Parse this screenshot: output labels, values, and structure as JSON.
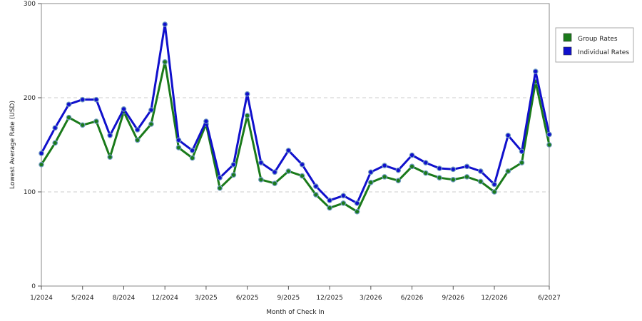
{
  "chart_data": {
    "type": "line",
    "xlabel": "Month of Check In",
    "ylabel": "Lowest Average Rate (USD)",
    "ylim": [
      0,
      300
    ],
    "yticks": [
      0,
      100,
      200,
      300
    ],
    "grid": "horizontal dashed",
    "legend_position": "top-right",
    "x_tick_labels": [
      {
        "index": 0,
        "label": "1/2024"
      },
      {
        "index": 3,
        "label": "5/2024"
      },
      {
        "index": 6,
        "label": "8/2024"
      },
      {
        "index": 9,
        "label": "12/2024"
      },
      {
        "index": 12,
        "label": "3/2025"
      },
      {
        "index": 15,
        "label": "6/2025"
      },
      {
        "index": 18,
        "label": "9/2025"
      },
      {
        "index": 21,
        "label": "12/2025"
      },
      {
        "index": 24,
        "label": "3/2026"
      },
      {
        "index": 27,
        "label": "6/2026"
      },
      {
        "index": 30,
        "label": "9/2026"
      },
      {
        "index": 33,
        "label": "12/2026"
      },
      {
        "index": 37,
        "label": "6/2027"
      }
    ],
    "point_count": 38,
    "series": [
      {
        "name": "Group Rates",
        "color": "#1a7a1a",
        "values": [
          129,
          152,
          179,
          171,
          175,
          137,
          185,
          155,
          172,
          238,
          147,
          136,
          172,
          104,
          118,
          181,
          113,
          109,
          122,
          117,
          97,
          83,
          88,
          79,
          110,
          116,
          112,
          127,
          120,
          115,
          113,
          116,
          111,
          100,
          122,
          131,
          217,
          150
        ]
      },
      {
        "name": "Individual Rates",
        "color": "#1010cc",
        "values": [
          141,
          168,
          193,
          198,
          198,
          160,
          188,
          166,
          187,
          278,
          155,
          144,
          175,
          115,
          129,
          204,
          131,
          121,
          144,
          129,
          106,
          91,
          96,
          88,
          121,
          128,
          123,
          139,
          131,
          125,
          124,
          127,
          122,
          108,
          160,
          143,
          228,
          161
        ]
      }
    ]
  }
}
